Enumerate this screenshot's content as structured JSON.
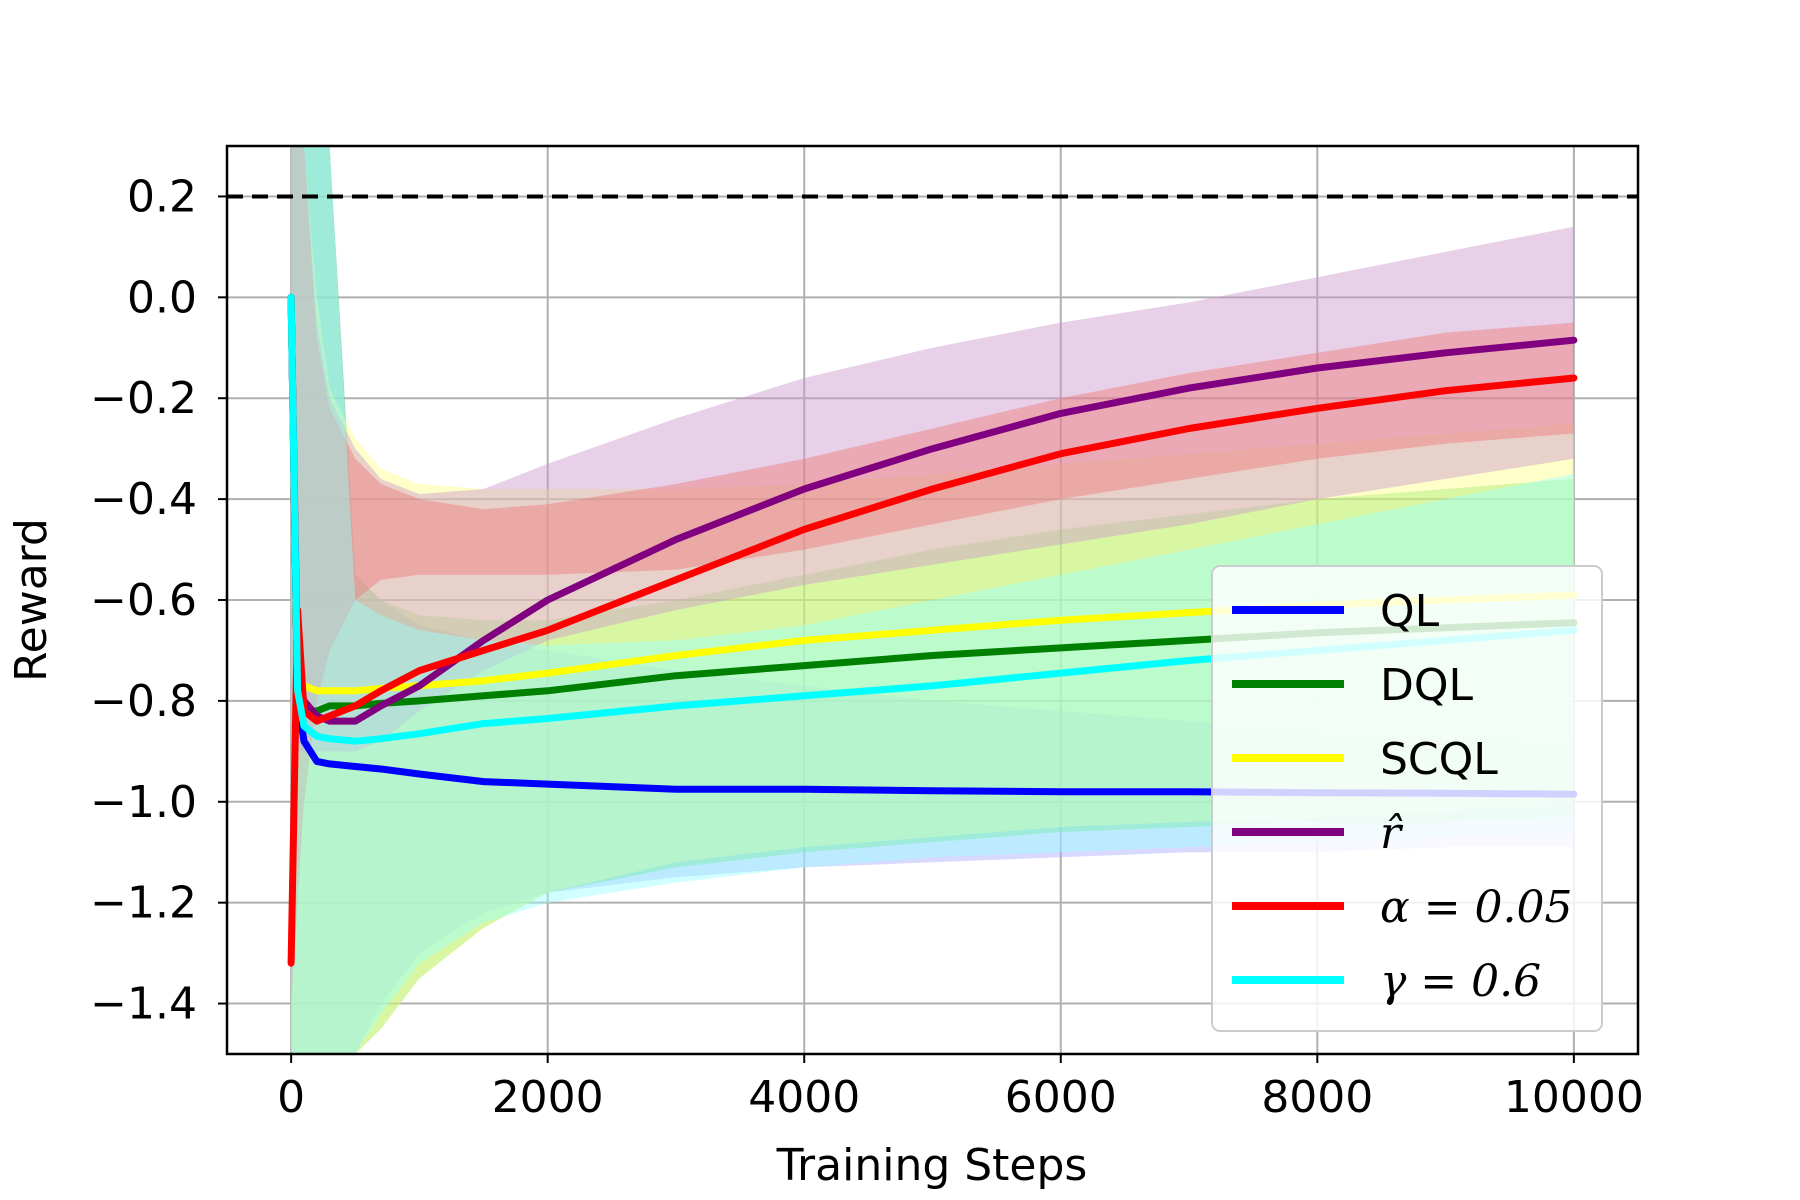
{
  "chart_data": {
    "type": "line",
    "xlabel": "Training Steps",
    "ylabel": "Reward",
    "xlim": [
      -500,
      10500
    ],
    "ylim": [
      -1.5,
      0.3
    ],
    "grid": true,
    "legend_position": "lower-right",
    "x_ticks": [
      {
        "value": 0,
        "label": "0"
      },
      {
        "value": 2000,
        "label": "2000"
      },
      {
        "value": 4000,
        "label": "4000"
      },
      {
        "value": 6000,
        "label": "6000"
      },
      {
        "value": 8000,
        "label": "8000"
      },
      {
        "value": 10000,
        "label": "10000"
      }
    ],
    "y_ticks": [
      {
        "value": 0.2,
        "label": "0.2"
      },
      {
        "value": 0.0,
        "label": "0.0"
      },
      {
        "value": -0.2,
        "label": "−0.2"
      },
      {
        "value": -0.4,
        "label": "−0.4"
      },
      {
        "value": -0.6,
        "label": "−0.6"
      },
      {
        "value": -0.8,
        "label": "−0.8"
      },
      {
        "value": -1.0,
        "label": "−1.0"
      },
      {
        "value": -1.2,
        "label": "−1.2"
      },
      {
        "value": -1.4,
        "label": "−1.4"
      }
    ],
    "reference_line": {
      "y": 0.2,
      "style": "dashed",
      "color": "#000000"
    },
    "x": [
      0,
      50,
      100,
      200,
      300,
      500,
      700,
      1000,
      1500,
      2000,
      3000,
      4000,
      5000,
      6000,
      7000,
      8000,
      9000,
      10000
    ],
    "series": [
      {
        "name": "QL",
        "color": "#0000ff",
        "values": [
          0.0,
          -0.8,
          -0.88,
          -0.92,
          -0.925,
          -0.93,
          -0.935,
          -0.945,
          -0.96,
          -0.965,
          -0.975,
          -0.975,
          -0.978,
          -0.98,
          -0.98,
          -0.982,
          -0.983,
          -0.985
        ],
        "band_upper": [
          0.3,
          0.3,
          0.3,
          0.3,
          0.3,
          -0.55,
          -0.6,
          -0.65,
          -0.68,
          -0.7,
          -0.74,
          -0.77,
          -0.8,
          -0.82,
          -0.84,
          -0.86,
          -0.87,
          -0.88
        ],
        "band_lower": [
          -1.5,
          -1.5,
          -1.5,
          -1.5,
          -1.5,
          -1.5,
          -1.4,
          -1.3,
          -1.22,
          -1.18,
          -1.15,
          -1.13,
          -1.12,
          -1.11,
          -1.1,
          -1.1,
          -1.09,
          -1.09
        ],
        "band_color": "#aaaaff"
      },
      {
        "name": "DQL",
        "color": "#008000",
        "values": [
          0.0,
          -0.8,
          -0.82,
          -0.82,
          -0.81,
          -0.81,
          -0.805,
          -0.8,
          -0.79,
          -0.78,
          -0.75,
          -0.73,
          -0.71,
          -0.695,
          -0.68,
          -0.665,
          -0.655,
          -0.645
        ],
        "band_upper": [
          0.3,
          0.3,
          0.3,
          0.3,
          0.3,
          -0.55,
          -0.6,
          -0.63,
          -0.64,
          -0.64,
          -0.6,
          -0.55,
          -0.5,
          -0.46,
          -0.43,
          -0.4,
          -0.38,
          -0.36
        ],
        "band_lower": [
          -1.5,
          -1.5,
          -1.5,
          -1.5,
          -1.5,
          -1.5,
          -1.45,
          -1.35,
          -1.25,
          -1.18,
          -1.13,
          -1.1,
          -1.08,
          -1.06,
          -1.05,
          -1.04,
          -1.04,
          -1.03
        ],
        "band_color": "#66dd66"
      },
      {
        "name": "SCQL",
        "color": "#ffff00",
        "values": [
          0.0,
          -0.75,
          -0.77,
          -0.78,
          -0.78,
          -0.78,
          -0.775,
          -0.77,
          -0.76,
          -0.745,
          -0.71,
          -0.68,
          -0.66,
          -0.64,
          -0.625,
          -0.61,
          -0.6,
          -0.59
        ],
        "band_upper": [
          0.3,
          0.3,
          0.3,
          0.0,
          -0.18,
          -0.28,
          -0.34,
          -0.37,
          -0.38,
          -0.38,
          -0.38,
          -0.37,
          -0.35,
          -0.33,
          -0.31,
          -0.29,
          -0.27,
          -0.25
        ],
        "band_lower": [
          -1.5,
          -1.5,
          -1.5,
          -1.5,
          -1.5,
          -1.5,
          -1.45,
          -1.35,
          -1.25,
          -1.18,
          -1.12,
          -1.09,
          -1.07,
          -1.05,
          -1.04,
          -1.03,
          -1.02,
          -1.0
        ],
        "band_color": "#ffff88"
      },
      {
        "name": "r̂",
        "color": "#800080",
        "values": [
          0.0,
          -0.75,
          -0.8,
          -0.83,
          -0.84,
          -0.84,
          -0.81,
          -0.77,
          -0.68,
          -0.6,
          -0.48,
          -0.38,
          -0.3,
          -0.23,
          -0.18,
          -0.14,
          -0.11,
          -0.085
        ],
        "band_upper": [
          0.3,
          0.3,
          0.3,
          -0.05,
          -0.2,
          -0.3,
          -0.36,
          -0.39,
          -0.38,
          -0.33,
          -0.24,
          -0.16,
          -0.1,
          -0.05,
          -0.01,
          0.04,
          0.09,
          0.14
        ],
        "band_lower": [
          -0.9,
          -0.9,
          -0.9,
          -0.9,
          -0.9,
          -0.9,
          -0.88,
          -0.82,
          -0.74,
          -0.68,
          -0.62,
          -0.57,
          -0.53,
          -0.49,
          -0.45,
          -0.4,
          -0.36,
          -0.32
        ],
        "band_color": "#cc99cc"
      },
      {
        "name": "α = 0.05",
        "color": "#ff0000",
        "values": [
          -1.32,
          -0.62,
          -0.82,
          -0.84,
          -0.83,
          -0.81,
          -0.78,
          -0.74,
          -0.7,
          -0.66,
          -0.56,
          -0.46,
          -0.38,
          -0.31,
          -0.26,
          -0.22,
          -0.185,
          -0.16
        ],
        "band_upper": [
          0.3,
          0.3,
          0.3,
          -0.08,
          -0.22,
          -0.32,
          -0.37,
          -0.4,
          -0.42,
          -0.41,
          -0.37,
          -0.32,
          -0.26,
          -0.2,
          -0.15,
          -0.11,
          -0.07,
          -0.05
        ],
        "band_lower": [
          -1.4,
          -1.2,
          -1.0,
          -0.8,
          -0.7,
          -0.6,
          -0.56,
          -0.55,
          -0.55,
          -0.55,
          -0.54,
          -0.5,
          -0.45,
          -0.4,
          -0.36,
          -0.32,
          -0.29,
          -0.27
        ],
        "band_color": "#ee7777"
      },
      {
        "name": "γ = 0.6",
        "color": "#00ffff",
        "values": [
          0.0,
          -0.78,
          -0.85,
          -0.87,
          -0.875,
          -0.88,
          -0.875,
          -0.865,
          -0.845,
          -0.835,
          -0.81,
          -0.79,
          -0.77,
          -0.745,
          -0.72,
          -0.7,
          -0.68,
          -0.66
        ],
        "band_upper": [
          0.3,
          0.3,
          0.3,
          0.3,
          0.3,
          -0.6,
          -0.63,
          -0.66,
          -0.68,
          -0.69,
          -0.68,
          -0.65,
          -0.6,
          -0.55,
          -0.5,
          -0.45,
          -0.4,
          -0.35
        ],
        "band_lower": [
          -1.5,
          -1.5,
          -1.5,
          -1.5,
          -1.5,
          -1.5,
          -1.42,
          -1.32,
          -1.24,
          -1.2,
          -1.16,
          -1.13,
          -1.11,
          -1.1,
          -1.09,
          -1.08,
          -1.07,
          -1.06
        ],
        "band_color": "#99ffff"
      }
    ]
  }
}
